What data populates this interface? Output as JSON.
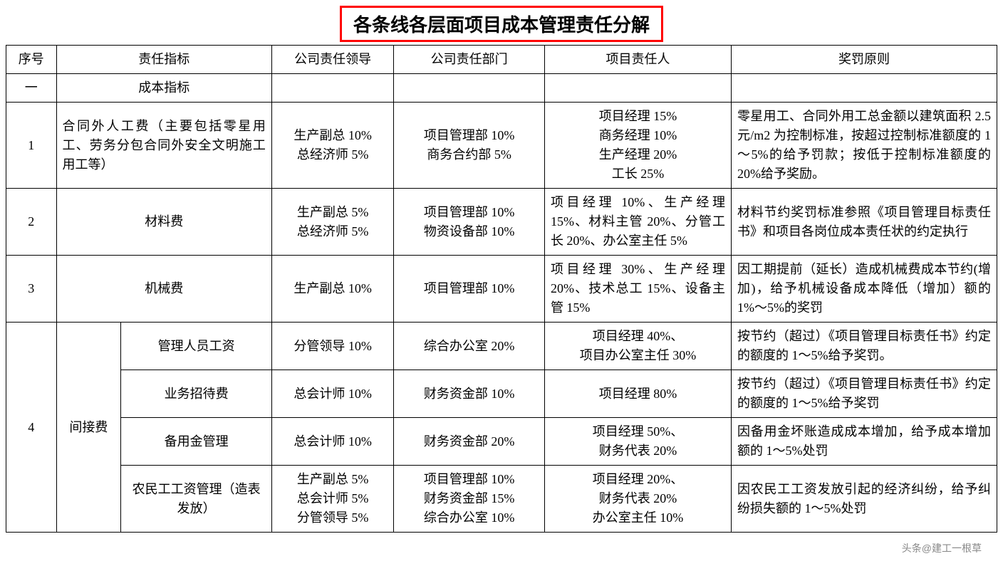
{
  "title": "各条线各层面项目成本管理责任分解",
  "headers": {
    "seq": "序号",
    "indicator": "责任指标",
    "company_leader": "公司责任领导",
    "company_dept": "公司责任部门",
    "project_person": "项目责任人",
    "reward_principle": "奖罚原则"
  },
  "section1": {
    "seq": "一",
    "label": "成本指标"
  },
  "row1": {
    "seq": "1",
    "indicator": "合同外人工费（主要包括零星用工、劳务分包合同外安全文明施工用工等）",
    "leader": "生产副总 10%\n总经济师 5%",
    "dept": "项目管理部 10%\n商务合约部 5%",
    "person": "项目经理 15%\n商务经理 10%\n生产经理 20%\n工长 25%",
    "principle": "零星用工、合同外用工总金额以建筑面积 2.5 元/m2 为控制标准，按超过控制标准额度的 1～5%的给予罚款；按低于控制标准额度的 20%给予奖励。"
  },
  "row2": {
    "seq": "2",
    "indicator": "材料费",
    "leader": "生产副总 5%\n总经济师 5%",
    "dept": "项目管理部 10%\n物资设备部 10%",
    "person": "项目经理 10%、生产经理 15%、材料主管 20%、分管工长 20%、办公室主任 5%",
    "principle": "材料节约奖罚标准参照《项目管理目标责任书》和项目各岗位成本责任状的约定执行"
  },
  "row3": {
    "seq": "3",
    "indicator": "机械费",
    "leader": "生产副总 10%",
    "dept": "项目管理部 10%",
    "person": "项目经理 30%、生产经理 20%、技术总工 15%、设备主管 15%",
    "principle": "因工期提前（延长）造成机械费成本节约(增加)，给予机械设备成本降低（增加）额的 1%～5%的奖罚"
  },
  "row4": {
    "seq": "4",
    "group_label": "间接费",
    "sub1": {
      "indicator": "管理人员工资",
      "leader": "分管领导 10%",
      "dept": "综合办公室 20%",
      "person": "项目经理 40%、\n项目办公室主任 30%",
      "principle": "按节约（超过）《项目管理目标责任书》约定的额度的 1～5%给予奖罚。"
    },
    "sub2": {
      "indicator": "业务招待费",
      "leader": "总会计师 10%",
      "dept": "财务资金部 10%",
      "person": "项目经理 80%",
      "principle": "按节约（超过）《项目管理目标责任书》约定的额度的 1～5%给予奖罚"
    },
    "sub3": {
      "indicator": "备用金管理",
      "leader": "总会计师 10%",
      "dept": "财务资金部 20%",
      "person": "项目经理 50%、\n财务代表 20%",
      "principle": "因备用金坏账造成成本增加，给予成本增加额的 1～5%处罚"
    },
    "sub4": {
      "indicator": "农民工工资管理（造表发放）",
      "leader": "生产副总 5%\n总会计师 5%\n分管领导 5%",
      "dept": "项目管理部 10%\n财务资金部 15%\n综合办公室 10%",
      "person": "项目经理 20%、\n财务代表 20%\n办公室主任 10%",
      "principle": "因农民工工资发放引起的经济纠纷，给予纠纷损失额的 1～5%处罚"
    }
  },
  "watermark": "头条@建工一根草",
  "style": {
    "title_border_color": "#ff0000",
    "cell_border_color": "#000000",
    "background": "#ffffff",
    "font_family": "SimSun",
    "title_fontsize": 26,
    "cell_fontsize": 18
  }
}
